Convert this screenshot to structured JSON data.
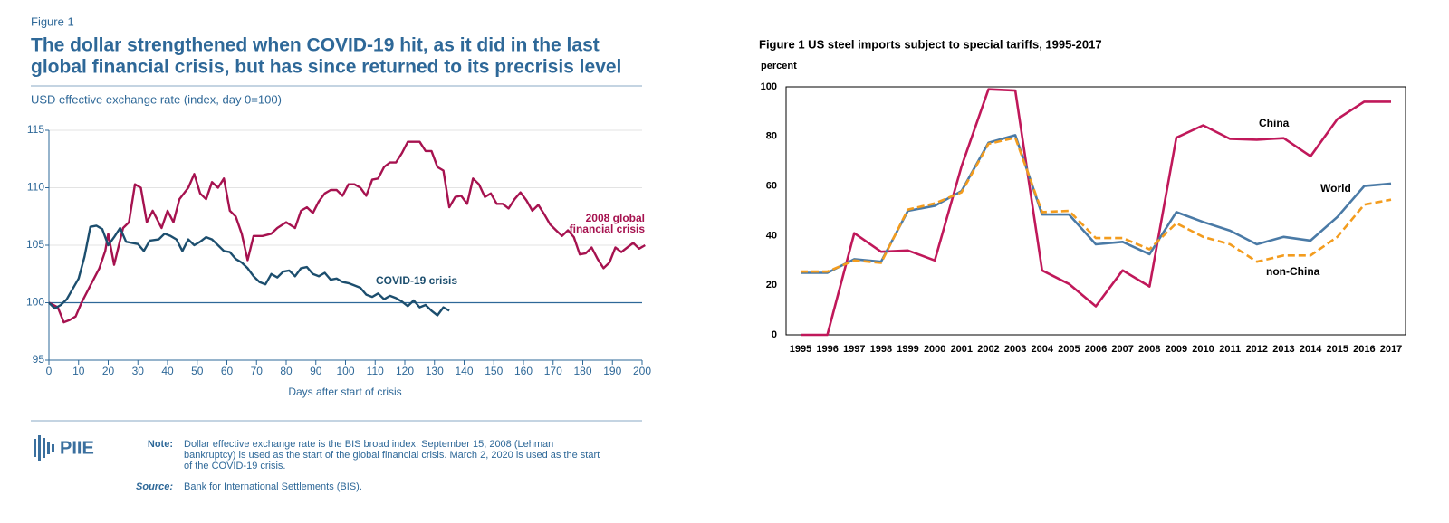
{
  "chart_data": [
    {
      "type": "line",
      "figure_label": "Figure 1",
      "title": [
        "The dollar strengthened when COVID-19 hit, as it did in the last",
        "global financial crisis, but has since returned to its precrisis level"
      ],
      "subtitle": "USD effective exchange rate (index, day 0=100)",
      "xlabel": "Days after start of crisis",
      "xlim": [
        0,
        200
      ],
      "xticks": [
        0,
        10,
        20,
        30,
        40,
        50,
        60,
        70,
        80,
        90,
        100,
        110,
        120,
        130,
        140,
        150,
        160,
        170,
        180,
        190,
        200
      ],
      "ylim": [
        95,
        115
      ],
      "yticks": [
        95,
        100,
        105,
        110,
        115
      ],
      "grid": true,
      "hline": 100,
      "series": [
        {
          "label": [
            "2008 global",
            "financial crisis"
          ],
          "color": "#a6124f",
          "x": [
            0,
            3,
            5,
            7,
            9,
            11,
            14,
            17,
            19,
            20,
            22,
            25,
            27,
            29,
            31,
            33,
            35,
            38,
            40,
            42,
            44,
            47,
            49,
            51,
            53,
            55,
            57,
            59,
            61,
            63,
            65,
            67,
            69,
            72,
            75,
            77,
            80,
            83,
            85,
            87,
            89,
            91,
            93,
            95,
            97,
            99,
            101,
            103,
            105,
            107,
            109,
            111,
            113,
            115,
            117,
            119,
            121,
            123,
            125,
            127,
            129,
            131,
            133,
            135,
            137,
            139,
            141,
            143,
            145,
            147,
            149,
            151,
            153,
            155,
            157,
            159,
            161,
            163,
            165,
            167,
            169,
            171,
            173,
            175,
            177,
            179,
            181,
            183,
            185,
            187,
            189,
            191,
            193,
            195,
            197,
            199,
            201
          ],
          "values": [
            100,
            99.6,
            98.3,
            98.5,
            98.8,
            100,
            101.5,
            103,
            104.5,
            106,
            103.3,
            106.5,
            107,
            110.3,
            110,
            107,
            108,
            106.5,
            108,
            107,
            109,
            110,
            111.2,
            109.5,
            109,
            110.5,
            110,
            110.8,
            108,
            107.5,
            106,
            103.7,
            105.8,
            105.8,
            106,
            106.5,
            107,
            106.5,
            108,
            108.3,
            107.8,
            108.8,
            109.5,
            109.8,
            109.8,
            109.3,
            110.3,
            110.3,
            110,
            109.3,
            110.7,
            110.8,
            111.8,
            112.2,
            112.2,
            113,
            114,
            114,
            114,
            113.2,
            113.2,
            111.8,
            111.5,
            108.3,
            109.2,
            109.3,
            108.6,
            110.8,
            110.3,
            109.2,
            109.5,
            108.6,
            108.6,
            108.2,
            109,
            109.6,
            108.9,
            108,
            108.5,
            107.7,
            106.8,
            106.3,
            105.8,
            106.3,
            105.7,
            104.2,
            104.3,
            104.8,
            103.8,
            103,
            103.5,
            104.8,
            104.4,
            104.8,
            105.2,
            104.7,
            105
          ]
        },
        {
          "label": [
            "COVID-19 crisis"
          ],
          "color": "#1c4e6e",
          "x": [
            0,
            2,
            4,
            6,
            8,
            10,
            12,
            14,
            16,
            18,
            20,
            22,
            24,
            26,
            28,
            30,
            32,
            34,
            37,
            39,
            41,
            43,
            45,
            47,
            49,
            51,
            53,
            55,
            57,
            59,
            61,
            63,
            65,
            67,
            69,
            71,
            73,
            75,
            77,
            79,
            81,
            83,
            85,
            87,
            89,
            91,
            93,
            95,
            97,
            99,
            101,
            103,
            105,
            107,
            109,
            111,
            113,
            115,
            117,
            119,
            121,
            123,
            125,
            127,
            129,
            131,
            133,
            135
          ],
          "values": [
            100,
            99.5,
            99.8,
            100.3,
            101.2,
            102.1,
            104,
            106.6,
            106.7,
            106.4,
            105,
            105.7,
            106.5,
            105.3,
            105.2,
            105.1,
            104.5,
            105.4,
            105.5,
            106,
            105.8,
            105.5,
            104.5,
            105.5,
            105,
            105.3,
            105.7,
            105.5,
            105,
            104.5,
            104.4,
            103.8,
            103.5,
            103,
            102.3,
            101.8,
            101.6,
            102.5,
            102.2,
            102.7,
            102.8,
            102.3,
            103,
            103.1,
            102.5,
            102.3,
            102.6,
            102,
            102.1,
            101.8,
            101.7,
            101.5,
            101.3,
            100.7,
            100.5,
            100.8,
            100.3,
            100.6,
            100.4,
            100.1,
            99.7,
            100.2,
            99.6,
            99.8,
            99.3,
            98.9,
            99.6,
            99.3
          ]
        }
      ],
      "logo": "PIIE",
      "note_label": "Note:",
      "note": [
        "Dollar effective exchange rate is the BIS broad index. September 15, 2008 (Lehman",
        "bankruptcy) is used as the start of the global financial crisis. March 2, 2020 is used as the start",
        "of the COVID-19 crisis."
      ],
      "source_label": "Source:",
      "source": "Bank for International Settlements (BIS)."
    },
    {
      "type": "line",
      "title": "Figure 1 US steel imports subject to special tariffs, 1995-2017",
      "ylabel": "percent",
      "categories": [
        "1995",
        "1996",
        "1997",
        "1998",
        "1999",
        "2000",
        "2001",
        "2002",
        "2003",
        "2004",
        "2005",
        "2006",
        "2007",
        "2008",
        "2009",
        "2010",
        "2011",
        "2012",
        "2013",
        "2014",
        "2015",
        "2016",
        "2017"
      ],
      "ylim": [
        0,
        100
      ],
      "yticks": [
        0,
        20,
        40,
        60,
        80,
        100
      ],
      "grid": false,
      "frame": true,
      "series": [
        {
          "name": "China",
          "color": "#c0185a",
          "values": [
            0,
            0,
            41,
            33.5,
            34,
            30,
            68,
            99,
            98.5,
            26,
            20.5,
            11.5,
            26,
            19.5,
            79.5,
            84.5,
            79,
            78.7,
            79.3,
            72,
            87,
            94,
            94
          ]
        },
        {
          "name": "World",
          "color": "#4a7aa6",
          "values": [
            25,
            25,
            30.5,
            29.5,
            50,
            52,
            58,
            77.5,
            80.5,
            48.5,
            48.5,
            36.5,
            37.5,
            32.5,
            49.5,
            45.5,
            42,
            36.5,
            39.5,
            38,
            47.5,
            60,
            61
          ]
        },
        {
          "name": "non-China",
          "color": "#f39c1e",
          "dash": true,
          "values": [
            25.5,
            25.5,
            30,
            29,
            50.5,
            53,
            57.5,
            77,
            79.5,
            49.5,
            50,
            39,
            39,
            34.5,
            45,
            39.5,
            36.5,
            29.5,
            32,
            32,
            39.5,
            52.5,
            54.5
          ]
        }
      ]
    }
  ]
}
